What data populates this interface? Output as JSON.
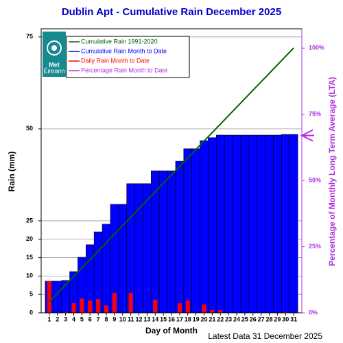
{
  "chart_data": {
    "type": "bar",
    "title": "Dublin Apt - Cumulative Rain December   2025",
    "ylabel": "Rain (mm)",
    "xlabel": "Day of Month",
    "y2label": "Percentage of Monthly Long Term Average (LTA)",
    "footer": "Latest Data 31 December 2025",
    "logo": [
      "Met",
      "Éireann"
    ],
    "x": [
      1,
      2,
      3,
      4,
      5,
      6,
      7,
      8,
      9,
      10,
      11,
      12,
      13,
      14,
      15,
      16,
      17,
      18,
      19,
      20,
      21,
      22,
      23,
      24,
      25,
      26,
      27,
      28,
      29,
      30,
      31
    ],
    "xlim": [
      0,
      32
    ],
    "xticks": [
      1,
      2,
      3,
      4,
      5,
      6,
      7,
      8,
      9,
      10,
      11,
      12,
      13,
      14,
      15,
      16,
      17,
      18,
      19,
      20,
      21,
      22,
      23,
      24,
      25,
      26,
      27,
      28,
      29,
      30,
      31
    ],
    "ylim": [
      0,
      77.2
    ],
    "yticks": [
      0,
      5,
      10,
      15,
      20,
      25,
      50,
      75
    ],
    "y2lim": [
      0,
      107.3
    ],
    "y2ticks": [
      {
        "value": 0,
        "label": "0%"
      },
      {
        "value": 25,
        "label": "25%"
      },
      {
        "value": 50,
        "label": "50%"
      },
      {
        "value": 75,
        "label": "75%"
      },
      {
        "value": 100,
        "label": "100%"
      }
    ],
    "grid": true,
    "series": [
      {
        "name": "Cumulative Rain 1991-2020",
        "color": "#006400",
        "kind": "line",
        "values": [
          3.0,
          5.3,
          7.6,
          9.9,
          12.2,
          14.5,
          16.8,
          19.1,
          21.4,
          23.7,
          26.0,
          28.3,
          30.6,
          32.9,
          35.2,
          37.5,
          39.8,
          42.1,
          44.4,
          46.7,
          49.0,
          51.3,
          53.6,
          55.9,
          58.2,
          60.5,
          62.8,
          65.1,
          67.4,
          69.7,
          72.0
        ]
      },
      {
        "name": "Cumulative Rain Month to Date",
        "color": "#0000ff",
        "kind": "wide",
        "values": [
          8.6,
          8.6,
          8.8,
          11.2,
          15.1,
          18.5,
          22.0,
          24.1,
          29.5,
          29.5,
          35.1,
          35.1,
          35.1,
          38.6,
          38.6,
          38.6,
          41.2,
          44.6,
          44.6,
          46.8,
          47.6,
          48.3,
          48.3,
          48.3,
          48.3,
          48.3,
          48.3,
          48.3,
          48.3,
          48.5,
          48.5
        ]
      },
      {
        "name": "Daily Rain Month to Date",
        "color": "#ff0000",
        "kind": "narrow",
        "values": [
          8.6,
          0.1,
          0.2,
          2.6,
          3.9,
          3.3,
          3.7,
          2.0,
          5.4,
          0,
          5.4,
          0,
          0,
          3.6,
          0,
          0,
          2.6,
          3.3,
          0,
          2.3,
          0.8,
          0.7,
          0,
          0,
          0,
          0,
          0,
          0,
          0,
          0.2,
          0
        ]
      },
      {
        "name": "Percentage Rain Month to Date",
        "color": "#b030e0",
        "kind": "arrow",
        "axis": "y2",
        "values": [
          null,
          null,
          null,
          null,
          null,
          null,
          null,
          null,
          null,
          null,
          null,
          null,
          null,
          null,
          null,
          null,
          null,
          null,
          null,
          null,
          null,
          null,
          null,
          null,
          null,
          null,
          null,
          null,
          null,
          null,
          67
        ]
      }
    ]
  }
}
